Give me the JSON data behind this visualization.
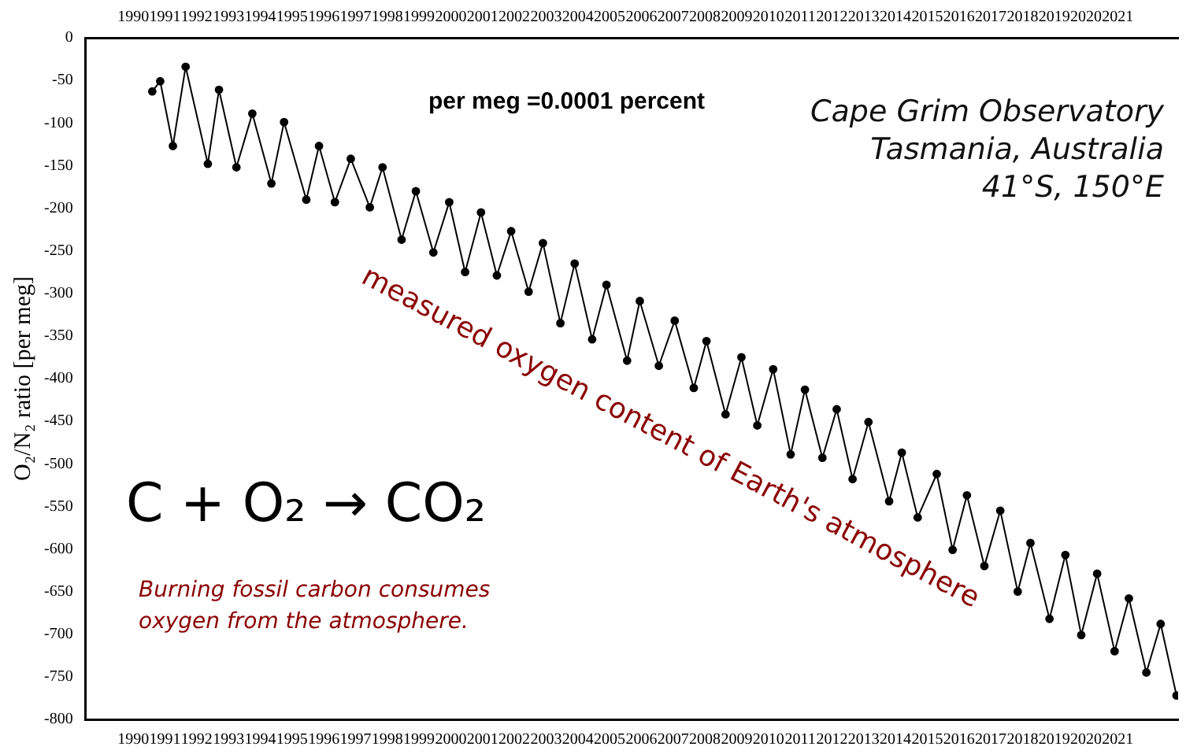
{
  "chart_data": {
    "type": "line",
    "ylabel": "O₂/N₂ ratio [per meg]",
    "annotations": [
      "per meg =0.0001 percent",
      "Cape Grim Observatory\nTasmania, Australia\n41°S, 150°E",
      "measured oxygen content of Earth's atmosphere",
      "C + O₂ → CO₂",
      "Burning fossil carbon consumes\noxygen from the atmosphere."
    ],
    "xlim": [
      1988.5,
      2022.9
    ],
    "xticks": [
      1990,
      1991,
      1992,
      1993,
      1994,
      1995,
      1996,
      1997,
      1998,
      1999,
      2000,
      2001,
      2002,
      2003,
      2004,
      2005,
      2006,
      2007,
      2008,
      2009,
      2010,
      2011,
      2012,
      2013,
      2014,
      2015,
      2016,
      2017,
      2018,
      2019,
      2020,
      2021
    ],
    "x2lim": [
      1988.5,
      2022.9
    ],
    "x2ticks": [
      1990,
      1991,
      1992,
      1993,
      1994,
      1995,
      1996,
      1997,
      1998,
      1999,
      2000,
      2001,
      2002,
      2003,
      2004,
      2005,
      2006,
      2007,
      2008,
      2009,
      2010,
      2011,
      2012,
      2013,
      2014,
      2015,
      2016,
      2017,
      2018,
      2019,
      2020,
      2021
    ],
    "ylim": [
      -800,
      0
    ],
    "yticks": [
      -800,
      -750,
      -700,
      -650,
      -600,
      -550,
      -500,
      -450,
      -400,
      -350,
      -300,
      -250,
      -200,
      -150,
      -100,
      -50,
      0
    ],
    "marker": "circle",
    "line_style": "solid",
    "series": [
      {
        "color": "#000000",
        "x": [
          1990.6,
          1990.85,
          1991.25,
          1991.65,
          1992.35,
          1992.7,
          1993.25,
          1993.75,
          1994.35,
          1994.75,
          1995.45,
          1995.85,
          1996.35,
          1996.85,
          1997.45,
          1997.85,
          1998.45,
          1998.9,
          1999.45,
          1999.95,
          2000.45,
          2000.95,
          2001.45,
          2001.9,
          2002.45,
          2002.9,
          2003.45,
          2003.9,
          2004.45,
          2004.9,
          2005.55,
          2005.95,
          2006.55,
          2007.05,
          2007.65,
          2008.05,
          2008.65,
          2009.15,
          2009.65,
          2010.15,
          2010.7,
          2011.15,
          2011.7,
          2012.15,
          2012.65,
          2013.15,
          2013.8,
          2014.2,
          2014.7,
          2015.3,
          2015.8,
          2016.25,
          2016.8,
          2017.3,
          2017.85,
          2018.25,
          2018.85,
          2019.35,
          2019.85,
          2020.35,
          2020.9,
          2021.35,
          2021.9,
          2022.35,
          2022.85
        ],
        "values": [
          -63,
          -51,
          -127,
          -34,
          -148,
          -61,
          -152,
          -89,
          -171,
          -99,
          -190,
          -127,
          -193,
          -142,
          -199,
          -152,
          -237,
          -180,
          -252,
          -193,
          -275,
          -205,
          -279,
          -227,
          -298,
          -241,
          -335,
          -265,
          -354,
          -290,
          -379,
          -309,
          -385,
          -332,
          -411,
          -356,
          -442,
          -375,
          -455,
          -389,
          -489,
          -413,
          -493,
          -436,
          -518,
          -451,
          -544,
          -487,
          -563,
          -512,
          -601,
          -537,
          -620,
          -555,
          -650,
          -593,
          -682,
          -607,
          -701,
          -629,
          -720,
          -658,
          -745,
          -688,
          -772
        ]
      }
    ]
  }
}
